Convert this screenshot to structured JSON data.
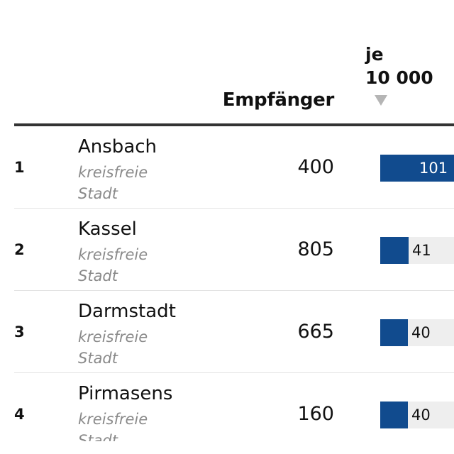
{
  "table": {
    "header": {
      "recipients_label": "Empfänger",
      "rate_label_line1": "je",
      "rate_label_line2": "10 000"
    },
    "bar_color": "#114b8e",
    "rows": [
      {
        "rank": "1",
        "name": "Ansbach",
        "type_line1": "kreisfreie",
        "type_line2": "Stadt",
        "recipients": "400",
        "rate_label": "101",
        "rate_value": 101
      },
      {
        "rank": "2",
        "name": "Kassel",
        "type_line1": "kreisfreie",
        "type_line2": "Stadt",
        "recipients": "805",
        "rate_label": "41",
        "rate_value": 41
      },
      {
        "rank": "3",
        "name": "Darmstadt",
        "type_line1": "kreisfreie",
        "type_line2": "Stadt",
        "recipients": "665",
        "rate_label": "40",
        "rate_value": 40
      },
      {
        "rank": "4",
        "name": "Pirmasens",
        "type_line1": "kreisfreie",
        "type_line2": "Stadt",
        "recipients": "160",
        "rate_label": "40",
        "rate_value": 40
      }
    ]
  }
}
